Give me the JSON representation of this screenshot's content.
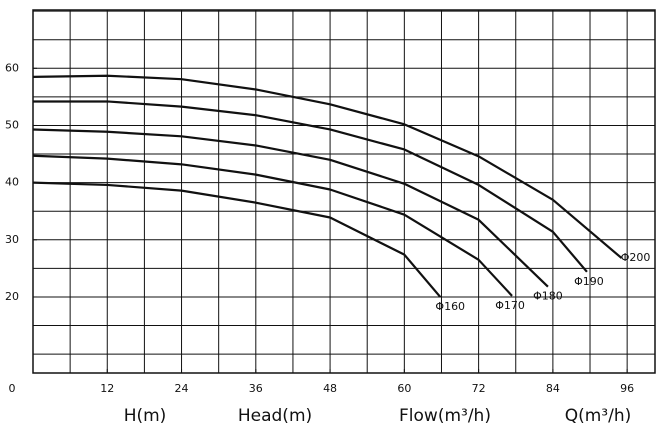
{
  "chart_data": {
    "type": "line",
    "origin_label": "0",
    "axis_labels": [
      "H(m)",
      "Head(m)",
      "Flow(m³/h)",
      "Q(m³/h)"
    ],
    "xlim": [
      0,
      100.5
    ],
    "ylim": [
      6.7,
      70.2
    ],
    "xticks": [
      12,
      24,
      36,
      48,
      60,
      72,
      84,
      96
    ],
    "yticks": [
      20,
      30,
      40,
      50,
      60
    ],
    "x_grid_step": 6,
    "y_grid_step": 5,
    "color": "#111111",
    "series": [
      {
        "name": "Φ160",
        "x": [
          0,
          12,
          24,
          36,
          48,
          60,
          65.8
        ],
        "values": [
          40,
          39.6,
          38.6,
          36.5,
          33.9,
          27.4,
          20
        ]
      },
      {
        "name": "Φ170",
        "x": [
          0,
          12,
          24,
          36,
          48,
          60,
          72,
          77.4
        ],
        "values": [
          44.7,
          44.2,
          43.2,
          41.4,
          38.8,
          34.4,
          26.5,
          20.2
        ]
      },
      {
        "name": "Φ180",
        "x": [
          0,
          12,
          24,
          36,
          48,
          60,
          72,
          83.2
        ],
        "values": [
          49.3,
          48.9,
          48.1,
          46.5,
          44,
          39.8,
          33.5,
          21.8
        ]
      },
      {
        "name": "Φ190",
        "x": [
          0,
          12,
          24,
          36,
          48,
          60,
          72,
          84,
          89.5
        ],
        "values": [
          54.2,
          54.2,
          53.3,
          51.8,
          49.3,
          45.8,
          39.6,
          31.4,
          24.4
        ]
      },
      {
        "name": "Φ200",
        "x": [
          0,
          12,
          24,
          36,
          48,
          60,
          72,
          84,
          95.1
        ],
        "values": [
          58.5,
          58.7,
          58.1,
          56.3,
          53.7,
          50.2,
          44.6,
          37,
          26.8
        ]
      }
    ]
  }
}
